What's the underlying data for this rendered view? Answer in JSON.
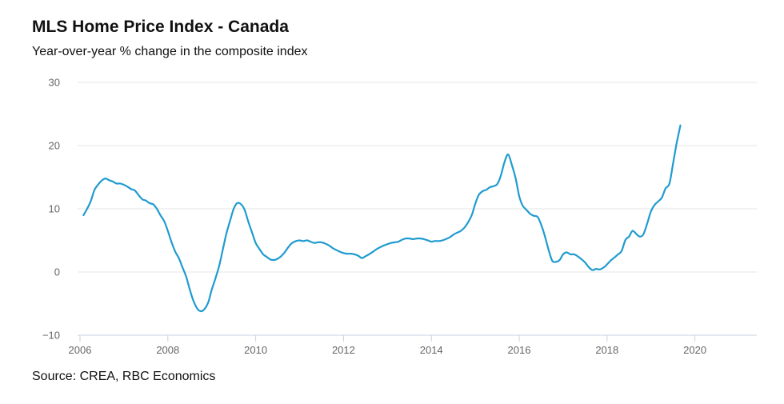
{
  "chart_data": {
    "type": "line",
    "title": "MLS Home Price Index - Canada",
    "subtitle": "Year-over-year % change in the composite index",
    "source": "Source: CREA, RBC Economics",
    "xlabel": "",
    "ylabel": "",
    "xlim": [
      2006.0,
      2021.55
    ],
    "ylim": [
      -10,
      30
    ],
    "yticks": [
      {
        "value": -10,
        "label": "−10"
      },
      {
        "value": 0,
        "label": "0"
      },
      {
        "value": 10,
        "label": "10"
      },
      {
        "value": 20,
        "label": "20"
      },
      {
        "value": 30,
        "label": "30"
      }
    ],
    "xticks": [
      {
        "value": 2006,
        "label": "2006"
      },
      {
        "value": 2008,
        "label": "2008"
      },
      {
        "value": 2010,
        "label": "2010"
      },
      {
        "value": 2012,
        "label": "2012"
      },
      {
        "value": 2014,
        "label": "2014"
      },
      {
        "value": 2016,
        "label": "2016"
      },
      {
        "value": 2018,
        "label": "2018"
      },
      {
        "value": 2020,
        "label": "2020"
      }
    ],
    "grid": true,
    "series": [
      {
        "name": "MLS HPI composite y/y % change",
        "color": "#1f9bcf",
        "points": [
          [
            2006.08,
            9.0
          ],
          [
            2006.17,
            10.1
          ],
          [
            2006.25,
            11.3
          ],
          [
            2006.33,
            13.0
          ],
          [
            2006.42,
            13.9
          ],
          [
            2006.5,
            14.5
          ],
          [
            2006.58,
            14.8
          ],
          [
            2006.67,
            14.5
          ],
          [
            2006.75,
            14.3
          ],
          [
            2006.83,
            14.0
          ],
          [
            2006.92,
            14.0
          ],
          [
            2007.0,
            13.8
          ],
          [
            2007.08,
            13.5
          ],
          [
            2007.17,
            13.1
          ],
          [
            2007.25,
            12.9
          ],
          [
            2007.33,
            12.2
          ],
          [
            2007.42,
            11.5
          ],
          [
            2007.5,
            11.3
          ],
          [
            2007.58,
            10.9
          ],
          [
            2007.67,
            10.7
          ],
          [
            2007.75,
            10.0
          ],
          [
            2007.83,
            9.0
          ],
          [
            2007.92,
            8.0
          ],
          [
            2008.0,
            6.5
          ],
          [
            2008.08,
            4.8
          ],
          [
            2008.17,
            3.2
          ],
          [
            2008.25,
            2.2
          ],
          [
            2008.33,
            0.8
          ],
          [
            2008.42,
            -0.8
          ],
          [
            2008.5,
            -2.8
          ],
          [
            2008.58,
            -4.5
          ],
          [
            2008.67,
            -5.8
          ],
          [
            2008.75,
            -6.2
          ],
          [
            2008.83,
            -5.9
          ],
          [
            2008.92,
            -4.8
          ],
          [
            2009.0,
            -2.8
          ],
          [
            2009.08,
            -1.1
          ],
          [
            2009.17,
            1.0
          ],
          [
            2009.25,
            3.5
          ],
          [
            2009.33,
            6.0
          ],
          [
            2009.42,
            8.2
          ],
          [
            2009.5,
            10.0
          ],
          [
            2009.58,
            10.9
          ],
          [
            2009.67,
            10.7
          ],
          [
            2009.75,
            9.8
          ],
          [
            2009.83,
            8.0
          ],
          [
            2009.92,
            6.2
          ],
          [
            2010.0,
            4.6
          ],
          [
            2010.08,
            3.7
          ],
          [
            2010.17,
            2.8
          ],
          [
            2010.25,
            2.4
          ],
          [
            2010.33,
            2.0
          ],
          [
            2010.42,
            1.9
          ],
          [
            2010.5,
            2.1
          ],
          [
            2010.58,
            2.5
          ],
          [
            2010.67,
            3.2
          ],
          [
            2010.75,
            4.0
          ],
          [
            2010.83,
            4.6
          ],
          [
            2010.92,
            4.9
          ],
          [
            2011.0,
            5.0
          ],
          [
            2011.08,
            4.9
          ],
          [
            2011.17,
            5.0
          ],
          [
            2011.25,
            4.8
          ],
          [
            2011.33,
            4.6
          ],
          [
            2011.42,
            4.7
          ],
          [
            2011.5,
            4.7
          ],
          [
            2011.58,
            4.5
          ],
          [
            2011.67,
            4.2
          ],
          [
            2011.75,
            3.8
          ],
          [
            2011.83,
            3.5
          ],
          [
            2011.92,
            3.2
          ],
          [
            2012.0,
            3.0
          ],
          [
            2012.08,
            2.9
          ],
          [
            2012.17,
            2.9
          ],
          [
            2012.25,
            2.8
          ],
          [
            2012.33,
            2.6
          ],
          [
            2012.42,
            2.2
          ],
          [
            2012.5,
            2.5
          ],
          [
            2012.58,
            2.8
          ],
          [
            2012.67,
            3.2
          ],
          [
            2012.75,
            3.6
          ],
          [
            2012.83,
            3.9
          ],
          [
            2012.92,
            4.2
          ],
          [
            2013.0,
            4.4
          ],
          [
            2013.08,
            4.6
          ],
          [
            2013.17,
            4.7
          ],
          [
            2013.25,
            4.8
          ],
          [
            2013.33,
            5.1
          ],
          [
            2013.42,
            5.3
          ],
          [
            2013.5,
            5.3
          ],
          [
            2013.58,
            5.2
          ],
          [
            2013.67,
            5.3
          ],
          [
            2013.75,
            5.3
          ],
          [
            2013.83,
            5.2
          ],
          [
            2013.92,
            5.0
          ],
          [
            2014.0,
            4.8
          ],
          [
            2014.08,
            4.9
          ],
          [
            2014.17,
            4.9
          ],
          [
            2014.25,
            5.0
          ],
          [
            2014.33,
            5.2
          ],
          [
            2014.42,
            5.5
          ],
          [
            2014.5,
            5.9
          ],
          [
            2014.58,
            6.2
          ],
          [
            2014.67,
            6.5
          ],
          [
            2014.75,
            7.0
          ],
          [
            2014.83,
            7.8
          ],
          [
            2014.92,
            9.0
          ],
          [
            2015.0,
            10.8
          ],
          [
            2015.08,
            12.2
          ],
          [
            2015.17,
            12.8
          ],
          [
            2015.25,
            13.0
          ],
          [
            2015.33,
            13.4
          ],
          [
            2015.42,
            13.6
          ],
          [
            2015.5,
            13.9
          ],
          [
            2015.58,
            15.2
          ],
          [
            2015.67,
            17.5
          ],
          [
            2015.75,
            18.6
          ],
          [
            2015.83,
            17.0
          ],
          [
            2015.92,
            14.8
          ],
          [
            2016.0,
            12.0
          ],
          [
            2016.08,
            10.5
          ],
          [
            2016.17,
            9.8
          ],
          [
            2016.25,
            9.2
          ],
          [
            2016.33,
            8.9
          ],
          [
            2016.42,
            8.7
          ],
          [
            2016.5,
            7.5
          ],
          [
            2016.58,
            5.8
          ],
          [
            2016.67,
            3.5
          ],
          [
            2016.75,
            1.8
          ],
          [
            2016.83,
            1.6
          ],
          [
            2016.92,
            1.9
          ],
          [
            2017.0,
            2.8
          ],
          [
            2017.08,
            3.1
          ],
          [
            2017.17,
            2.8
          ],
          [
            2017.25,
            2.8
          ],
          [
            2017.33,
            2.5
          ],
          [
            2017.42,
            2.0
          ],
          [
            2017.5,
            1.5
          ],
          [
            2017.58,
            0.8
          ],
          [
            2017.67,
            0.3
          ],
          [
            2017.75,
            0.5
          ],
          [
            2017.83,
            0.4
          ],
          [
            2017.92,
            0.7
          ],
          [
            2018.0,
            1.2
          ],
          [
            2018.08,
            1.8
          ],
          [
            2018.17,
            2.3
          ],
          [
            2018.25,
            2.8
          ],
          [
            2018.33,
            3.3
          ],
          [
            2018.42,
            5.1
          ],
          [
            2018.5,
            5.6
          ],
          [
            2018.58,
            6.5
          ],
          [
            2018.67,
            6.0
          ],
          [
            2018.75,
            5.6
          ],
          [
            2018.83,
            6.0
          ],
          [
            2018.92,
            7.8
          ],
          [
            2019.0,
            9.6
          ],
          [
            2019.08,
            10.6
          ],
          [
            2019.17,
            11.2
          ],
          [
            2019.25,
            11.8
          ],
          [
            2019.33,
            13.2
          ],
          [
            2019.42,
            14.0
          ],
          [
            2019.5,
            17.0
          ],
          [
            2019.58,
            20.2
          ],
          [
            2019.67,
            23.2
          ]
        ]
      }
    ]
  }
}
